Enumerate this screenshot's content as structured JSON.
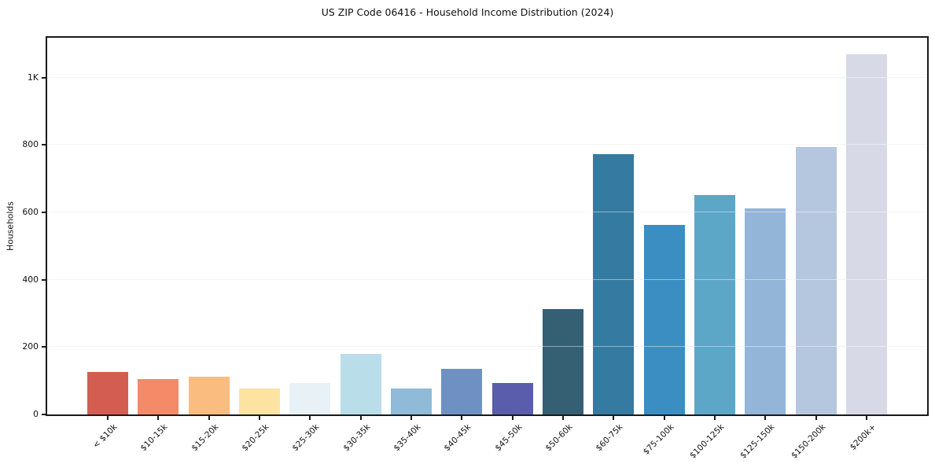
{
  "chart_data": {
    "type": "bar",
    "title": "US ZIP Code 06416 - Household Income Distribution (2024)",
    "xlabel": "",
    "ylabel": "Households",
    "categories": [
      "< $10k",
      "$10-15k",
      "$15-20k",
      "$20-25k",
      "$25-30k",
      "$30-35k",
      "$35-40k",
      "$40-45k",
      "$45-50k",
      "$50-60k",
      "$60-75k",
      "$75-100k",
      "$100-125k",
      "$125-150k",
      "$150-200k",
      "$200k+"
    ],
    "values": [
      127,
      106,
      113,
      76,
      93,
      180,
      76,
      136,
      93,
      314,
      772,
      562,
      651,
      611,
      794,
      1068
    ],
    "bar_colors": [
      "#d45d52",
      "#f48a68",
      "#fabc7f",
      "#fde3a1",
      "#e7f1f6",
      "#b9deea",
      "#8fbad8",
      "#6f90c3",
      "#5a5dac",
      "#355f73",
      "#357aa0",
      "#3a8ec2",
      "#5ca6c8",
      "#92b5d8",
      "#b5c7df",
      "#d8d9e6"
    ],
    "yticks": [
      {
        "label": "0",
        "value": 0
      },
      {
        "label": "200",
        "value": 200
      },
      {
        "label": "400",
        "value": 400
      },
      {
        "label": "600",
        "value": 600
      },
      {
        "label": "800",
        "value": 800
      },
      {
        "label": "1K",
        "value": 1000
      }
    ],
    "ylim": [
      0,
      1118
    ],
    "grid": true,
    "legend": "none",
    "style": {
      "spine_color": "#1a1a1a",
      "grid_color": "#ebebeb",
      "background": "#ffffff",
      "text_color": "#111111"
    }
  }
}
